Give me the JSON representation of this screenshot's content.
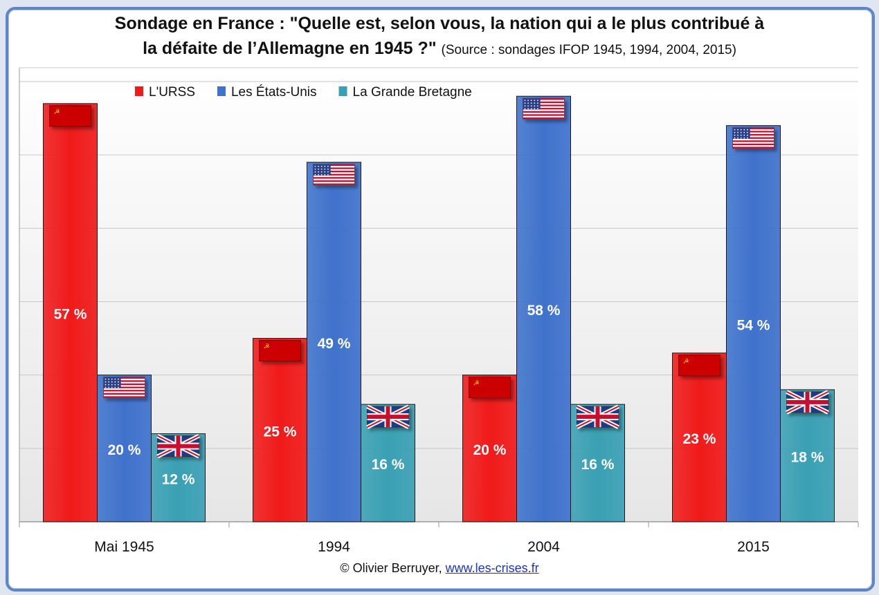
{
  "title": {
    "line1": "Sondage en France : \"Quelle est, selon vous, la nation qui a le plus contribué à",
    "line2": "la défaite de l’Allemagne en 1945 ?\"",
    "source": "(Source : sondages IFOP 1945, 1994, 2004, 2015)"
  },
  "credit": {
    "author": "© Olivier Berruyer,",
    "link": "www.les-crises.fr"
  },
  "chart_data": {
    "type": "bar",
    "categories": [
      "Mai 1945",
      "1994",
      "2004",
      "2015"
    ],
    "series": [
      {
        "name": "L'URSS",
        "values": [
          57,
          25,
          20,
          23
        ],
        "color": "#f01a1a",
        "flag": "ussr-flag"
      },
      {
        "name": "Les États-Unis",
        "values": [
          20,
          49,
          58,
          54
        ],
        "color": "#3f72cc",
        "flag": "usa-flag"
      },
      {
        "name": "La Grande Bretagne",
        "values": [
          12,
          16,
          16,
          18
        ],
        "color": "#3aa0b4",
        "flag": "uk-flag"
      }
    ],
    "value_suffix": " %",
    "ylim": [
      0,
      60
    ],
    "y_ticks_shown": false,
    "grid": true,
    "legend_position": "top-left"
  }
}
